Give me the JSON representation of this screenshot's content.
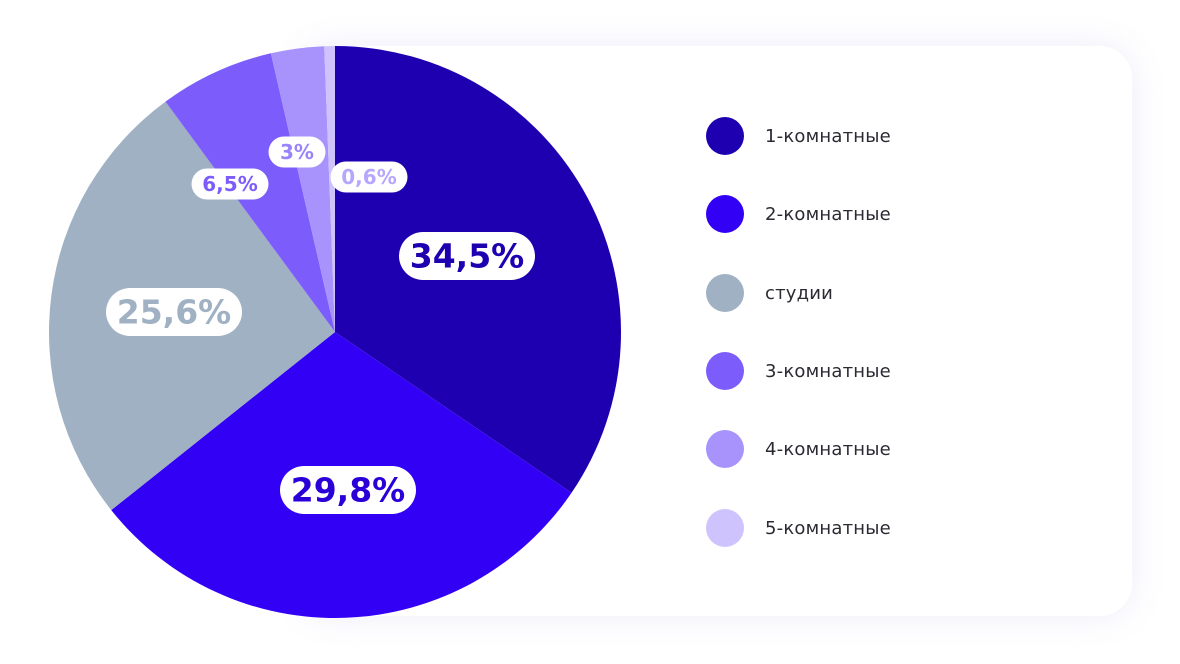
{
  "chart_data": {
    "type": "pie",
    "slices": [
      {
        "name": "1-комнатные",
        "value": 34.5,
        "label": "34,5%",
        "color": "#1e00b0",
        "label_color": "#1e00b0"
      },
      {
        "name": "2-комнатные",
        "value": 29.8,
        "label": "29,8%",
        "color": "#3200f5",
        "label_color": "#2b00d8"
      },
      {
        "name": "студии",
        "value": 25.6,
        "label": "25,6%",
        "color": "#a0b1c4",
        "label_color": "#a0b1c4"
      },
      {
        "name": "3-комнатные",
        "value": 6.5,
        "label": "6,5%",
        "color": "#7c5dfb",
        "label_color": "#7c5dfb"
      },
      {
        "name": "4-комнатные",
        "value": 3,
        "label": "3%",
        "color": "#a893fd",
        "label_color": "#9a84fb"
      },
      {
        "name": "5-комнатные",
        "value": 0.6,
        "label": "0,6%",
        "color": "#cfc3fe",
        "label_color": "#b6a6fd"
      }
    ],
    "legend_position": "right"
  }
}
